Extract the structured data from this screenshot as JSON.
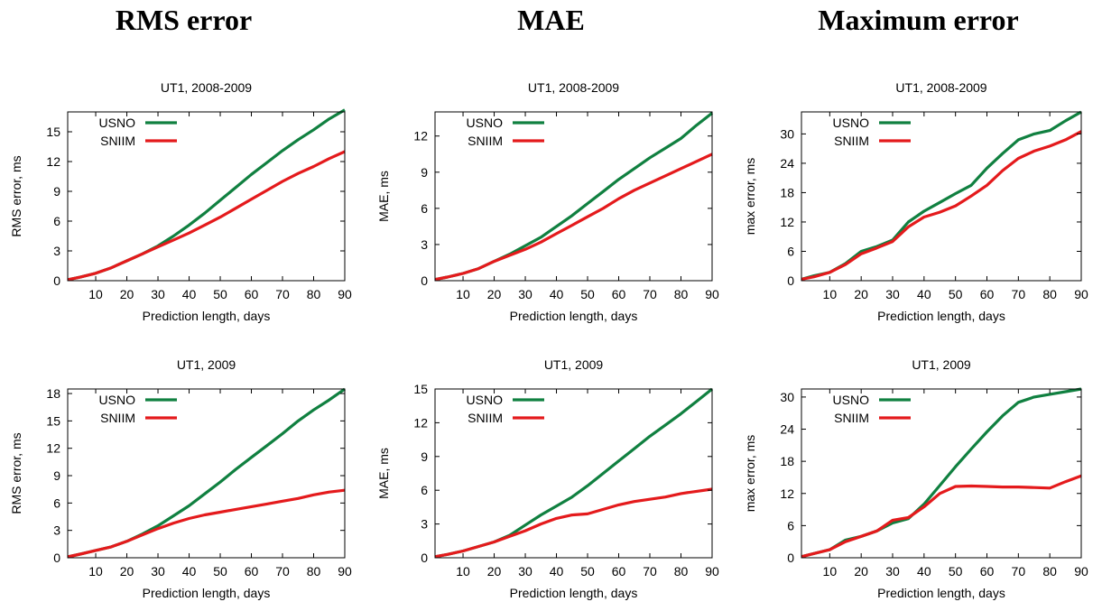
{
  "columns": [
    {
      "title": "RMS error"
    },
    {
      "title": "MAE"
    },
    {
      "title": "Maximum error"
    }
  ],
  "colors": {
    "usno": "#108040",
    "sniim": "#e41a1c"
  },
  "chart_data": [
    {
      "type": "line",
      "title": "UT1, 2008-2009",
      "xlabel": "Prediction length, days",
      "ylabel": "RMS error, ms",
      "xlim": [
        1,
        90
      ],
      "ylim": [
        0,
        17
      ],
      "xticks": [
        10,
        20,
        30,
        40,
        50,
        60,
        70,
        80,
        90
      ],
      "yticks": [
        0,
        3,
        6,
        9,
        12,
        15
      ],
      "legend": "top-left",
      "series": [
        {
          "name": "USNO",
          "color": "#108040",
          "x": [
            1,
            5,
            10,
            15,
            20,
            25,
            30,
            35,
            40,
            45,
            50,
            55,
            60,
            65,
            70,
            75,
            80,
            85,
            90
          ],
          "y": [
            0.1,
            0.35,
            0.75,
            1.3,
            2.0,
            2.7,
            3.5,
            4.5,
            5.6,
            6.8,
            8.1,
            9.4,
            10.7,
            11.9,
            13.1,
            14.2,
            15.2,
            16.3,
            17.2
          ]
        },
        {
          "name": "SNIIM",
          "color": "#e41a1c",
          "x": [
            1,
            5,
            10,
            15,
            20,
            25,
            30,
            35,
            40,
            45,
            50,
            55,
            60,
            65,
            70,
            75,
            80,
            85,
            90
          ],
          "y": [
            0.1,
            0.35,
            0.75,
            1.3,
            2.0,
            2.7,
            3.4,
            4.1,
            4.8,
            5.6,
            6.4,
            7.3,
            8.2,
            9.1,
            10.0,
            10.8,
            11.5,
            12.3,
            13.0
          ]
        }
      ]
    },
    {
      "type": "line",
      "title": "UT1, 2008-2009",
      "xlabel": "Prediction length, days",
      "ylabel": "MAE, ms",
      "xlim": [
        1,
        90
      ],
      "ylim": [
        0,
        14
      ],
      "xticks": [
        10,
        20,
        30,
        40,
        50,
        60,
        70,
        80,
        90
      ],
      "yticks": [
        0,
        3,
        6,
        9,
        12
      ],
      "legend": "top-left",
      "series": [
        {
          "name": "USNO",
          "color": "#108040",
          "x": [
            1,
            5,
            10,
            15,
            20,
            25,
            30,
            35,
            40,
            45,
            50,
            55,
            60,
            65,
            70,
            75,
            80,
            85,
            90
          ],
          "y": [
            0.1,
            0.3,
            0.6,
            1.0,
            1.6,
            2.2,
            2.9,
            3.6,
            4.5,
            5.4,
            6.4,
            7.4,
            8.4,
            9.3,
            10.2,
            11.0,
            11.8,
            12.9,
            13.9
          ]
        },
        {
          "name": "SNIIM",
          "color": "#e41a1c",
          "x": [
            1,
            5,
            10,
            15,
            20,
            25,
            30,
            35,
            40,
            45,
            50,
            55,
            60,
            65,
            70,
            75,
            80,
            85,
            90
          ],
          "y": [
            0.1,
            0.3,
            0.6,
            1.0,
            1.6,
            2.1,
            2.6,
            3.2,
            3.9,
            4.6,
            5.3,
            6.0,
            6.8,
            7.5,
            8.1,
            8.7,
            9.3,
            9.9,
            10.5
          ]
        }
      ]
    },
    {
      "type": "line",
      "title": "UT1, 2008-2009",
      "xlabel": "Prediction length, days",
      "ylabel": "max error, ms",
      "xlim": [
        1,
        90
      ],
      "ylim": [
        0,
        34.5
      ],
      "xticks": [
        10,
        20,
        30,
        40,
        50,
        60,
        70,
        80,
        90
      ],
      "yticks": [
        0,
        6,
        12,
        18,
        24,
        30
      ],
      "legend": "top-left",
      "series": [
        {
          "name": "USNO",
          "color": "#108040",
          "x": [
            1,
            5,
            10,
            15,
            20,
            25,
            30,
            35,
            40,
            45,
            50,
            55,
            60,
            65,
            70,
            75,
            80,
            85,
            90
          ],
          "y": [
            0.3,
            1.0,
            1.7,
            3.5,
            6.0,
            7.0,
            8.3,
            12.0,
            14.2,
            16.0,
            17.8,
            19.5,
            23.0,
            26.0,
            28.8,
            30.0,
            30.7,
            32.7,
            34.5
          ]
        },
        {
          "name": "SNIIM",
          "color": "#e41a1c",
          "x": [
            1,
            5,
            10,
            15,
            20,
            25,
            30,
            35,
            40,
            45,
            50,
            55,
            60,
            65,
            70,
            75,
            80,
            85,
            90
          ],
          "y": [
            0.3,
            0.8,
            1.7,
            3.3,
            5.5,
            6.7,
            8.0,
            11.0,
            13.0,
            14.0,
            15.3,
            17.3,
            19.5,
            22.5,
            25.0,
            26.5,
            27.5,
            28.8,
            30.5
          ]
        }
      ]
    },
    {
      "type": "line",
      "title": "UT1, 2009",
      "xlabel": "Prediction length, days",
      "ylabel": "RMS error, ms",
      "xlim": [
        1,
        90
      ],
      "ylim": [
        0,
        18.5
      ],
      "xticks": [
        10,
        20,
        30,
        40,
        50,
        60,
        70,
        80,
        90
      ],
      "yticks": [
        0,
        3,
        6,
        9,
        12,
        15,
        18
      ],
      "legend": "top-left",
      "series": [
        {
          "name": "USNO",
          "color": "#108040",
          "x": [
            1,
            5,
            10,
            15,
            20,
            25,
            30,
            35,
            40,
            45,
            50,
            55,
            60,
            65,
            70,
            75,
            80,
            85,
            90
          ],
          "y": [
            0.1,
            0.4,
            0.8,
            1.2,
            1.8,
            2.6,
            3.5,
            4.6,
            5.7,
            7.0,
            8.3,
            9.7,
            11.0,
            12.3,
            13.6,
            15.0,
            16.2,
            17.3,
            18.5
          ]
        },
        {
          "name": "SNIIM",
          "color": "#e41a1c",
          "x": [
            1,
            5,
            10,
            15,
            20,
            25,
            30,
            35,
            40,
            45,
            50,
            55,
            60,
            65,
            70,
            75,
            80,
            85,
            90
          ],
          "y": [
            0.1,
            0.4,
            0.8,
            1.2,
            1.8,
            2.5,
            3.2,
            3.8,
            4.3,
            4.7,
            5.0,
            5.3,
            5.6,
            5.9,
            6.2,
            6.5,
            6.9,
            7.2,
            7.4
          ]
        }
      ]
    },
    {
      "type": "line",
      "title": "UT1, 2009",
      "xlabel": "Prediction length, days",
      "ylabel": "MAE, ms",
      "xlim": [
        1,
        90
      ],
      "ylim": [
        0,
        15
      ],
      "xticks": [
        10,
        20,
        30,
        40,
        50,
        60,
        70,
        80,
        90
      ],
      "yticks": [
        0,
        3,
        6,
        9,
        12,
        15
      ],
      "legend": "top-left",
      "series": [
        {
          "name": "USNO",
          "color": "#108040",
          "x": [
            1,
            5,
            10,
            15,
            20,
            25,
            30,
            35,
            40,
            45,
            50,
            55,
            60,
            65,
            70,
            75,
            80,
            85,
            90
          ],
          "y": [
            0.1,
            0.3,
            0.6,
            1.0,
            1.4,
            2.0,
            2.9,
            3.8,
            4.6,
            5.4,
            6.4,
            7.5,
            8.6,
            9.7,
            10.8,
            11.8,
            12.8,
            13.9,
            15.0
          ]
        },
        {
          "name": "SNIIM",
          "color": "#e41a1c",
          "x": [
            1,
            5,
            10,
            15,
            20,
            25,
            30,
            35,
            40,
            45,
            50,
            55,
            60,
            65,
            70,
            75,
            80,
            85,
            90
          ],
          "y": [
            0.1,
            0.3,
            0.6,
            1.0,
            1.4,
            1.9,
            2.4,
            3.0,
            3.5,
            3.8,
            3.9,
            4.3,
            4.7,
            5.0,
            5.2,
            5.4,
            5.7,
            5.9,
            6.1
          ]
        }
      ]
    },
    {
      "type": "line",
      "title": "UT1, 2009",
      "xlabel": "Prediction length, days",
      "ylabel": "max error, ms",
      "xlim": [
        1,
        90
      ],
      "ylim": [
        0,
        31.5
      ],
      "xticks": [
        10,
        20,
        30,
        40,
        50,
        60,
        70,
        80,
        90
      ],
      "yticks": [
        0,
        6,
        12,
        18,
        24,
        30
      ],
      "legend": "top-left",
      "series": [
        {
          "name": "USNO",
          "color": "#108040",
          "x": [
            1,
            5,
            10,
            15,
            20,
            25,
            30,
            35,
            40,
            45,
            50,
            55,
            60,
            65,
            70,
            75,
            80,
            85,
            90
          ],
          "y": [
            0.2,
            0.8,
            1.5,
            3.3,
            4.0,
            5.0,
            6.5,
            7.3,
            10.0,
            13.5,
            17.0,
            20.3,
            23.5,
            26.5,
            29.0,
            30.0,
            30.5,
            31.0,
            31.5
          ]
        },
        {
          "name": "SNIIM",
          "color": "#e41a1c",
          "x": [
            1,
            5,
            10,
            15,
            20,
            25,
            30,
            35,
            40,
            45,
            50,
            55,
            60,
            65,
            70,
            75,
            80,
            85,
            90
          ],
          "y": [
            0.2,
            0.8,
            1.5,
            3.0,
            4.0,
            5.0,
            7.0,
            7.5,
            9.5,
            12.0,
            13.3,
            13.4,
            13.3,
            13.2,
            13.2,
            13.1,
            13.0,
            14.2,
            15.3
          ]
        }
      ]
    }
  ]
}
